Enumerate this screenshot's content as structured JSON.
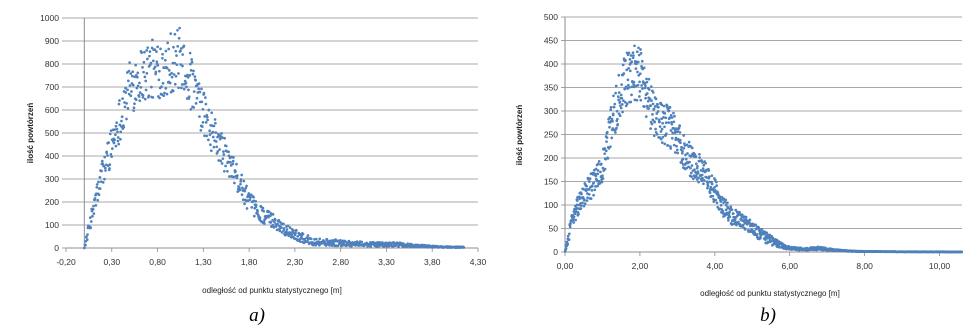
{
  "chart_data": [
    {
      "panel_label": "a)",
      "type": "scatter",
      "title": "",
      "xlabel": "odległość od punktu statystycznego  [m]",
      "ylabel": "ilość powtórzeń",
      "xlim": [
        -0.2,
        4.3
      ],
      "ylim": [
        0,
        1000
      ],
      "x_ticks": [
        -0.2,
        0.3,
        0.8,
        1.3,
        1.8,
        2.3,
        2.8,
        3.3,
        3.8,
        4.3
      ],
      "x_tick_labels": [
        "-0,20",
        "0,30",
        "0,80",
        "1,30",
        "1,80",
        "2,30",
        "2,80",
        "3,30",
        "3,80",
        "4,30"
      ],
      "y_ticks": [
        0,
        100,
        200,
        300,
        400,
        500,
        600,
        700,
        800,
        900,
        1000
      ],
      "y_tick_labels": [
        "0",
        "100",
        "200",
        "300",
        "400",
        "500",
        "600",
        "700",
        "800",
        "900",
        "1000"
      ],
      "grid": "horizontal",
      "marker_color": "#4f81bd",
      "profile": [
        [
          0.0,
          0
        ],
        [
          0.1,
          170
        ],
        [
          0.2,
          330
        ],
        [
          0.3,
          450
        ],
        [
          0.4,
          580
        ],
        [
          0.5,
          700
        ],
        [
          0.6,
          750
        ],
        [
          0.7,
          770
        ],
        [
          0.8,
          780
        ],
        [
          0.9,
          800
        ],
        [
          1.0,
          820
        ],
        [
          1.05,
          820
        ],
        [
          1.1,
          790
        ],
        [
          1.2,
          680
        ],
        [
          1.3,
          580
        ],
        [
          1.4,
          500
        ],
        [
          1.5,
          430
        ],
        [
          1.6,
          350
        ],
        [
          1.7,
          280
        ],
        [
          1.8,
          200
        ],
        [
          1.9,
          160
        ],
        [
          2.0,
          130
        ],
        [
          2.1,
          110
        ],
        [
          2.2,
          80
        ],
        [
          2.3,
          60
        ],
        [
          2.4,
          40
        ],
        [
          2.5,
          30
        ],
        [
          2.6,
          25
        ],
        [
          2.8,
          22
        ],
        [
          3.0,
          18
        ],
        [
          3.2,
          15
        ],
        [
          3.4,
          15
        ],
        [
          3.6,
          10
        ],
        [
          3.8,
          6
        ],
        [
          4.0,
          4
        ],
        [
          4.15,
          3
        ]
      ],
      "x_range": [
        0.0,
        4.15
      ],
      "n_points": 900,
      "noise": 0.09,
      "noise_abs": 8
    },
    {
      "panel_label": "b)",
      "type": "scatter",
      "title": "",
      "xlabel": "odległość od punktu statystycznego  [m]",
      "ylabel": "ilość powtórzeń",
      "xlim": [
        0,
        10.6
      ],
      "ylim": [
        0,
        500
      ],
      "x_ticks": [
        0,
        2,
        4,
        6,
        8,
        10
      ],
      "x_tick_labels": [
        "0,00",
        "2,00",
        "4,00",
        "6,00",
        "8,00",
        "10,00"
      ],
      "y_ticks": [
        0,
        50,
        100,
        150,
        200,
        250,
        300,
        350,
        400,
        450,
        500
      ],
      "y_tick_labels": [
        "0",
        "50",
        "100",
        "150",
        "200",
        "250",
        "300",
        "350",
        "400",
        "450",
        "500"
      ],
      "grid": "horizontal",
      "marker_color": "#4f81bd",
      "profile": [
        [
          0.0,
          0
        ],
        [
          0.2,
          70
        ],
        [
          0.4,
          110
        ],
        [
          0.6,
          130
        ],
        [
          0.8,
          150
        ],
        [
          1.0,
          180
        ],
        [
          1.2,
          260
        ],
        [
          1.4,
          320
        ],
        [
          1.6,
          360
        ],
        [
          1.8,
          380
        ],
        [
          2.0,
          380
        ],
        [
          2.2,
          330
        ],
        [
          2.4,
          290
        ],
        [
          2.6,
          275
        ],
        [
          2.8,
          265
        ],
        [
          3.0,
          240
        ],
        [
          3.2,
          210
        ],
        [
          3.4,
          190
        ],
        [
          3.6,
          175
        ],
        [
          3.8,
          155
        ],
        [
          4.0,
          130
        ],
        [
          4.2,
          100
        ],
        [
          4.4,
          80
        ],
        [
          4.6,
          70
        ],
        [
          4.8,
          60
        ],
        [
          5.0,
          50
        ],
        [
          5.2,
          40
        ],
        [
          5.4,
          30
        ],
        [
          5.6,
          20
        ],
        [
          5.8,
          13
        ],
        [
          6.0,
          8
        ],
        [
          6.4,
          6
        ],
        [
          6.8,
          8
        ],
        [
          7.2,
          4
        ],
        [
          7.6,
          2
        ],
        [
          8.0,
          1
        ],
        [
          9.0,
          0.5
        ],
        [
          10.6,
          0.3
        ]
      ],
      "x_range": [
        0.0,
        10.6
      ],
      "n_points": 1400,
      "noise": 0.08,
      "noise_abs": 5
    }
  ]
}
